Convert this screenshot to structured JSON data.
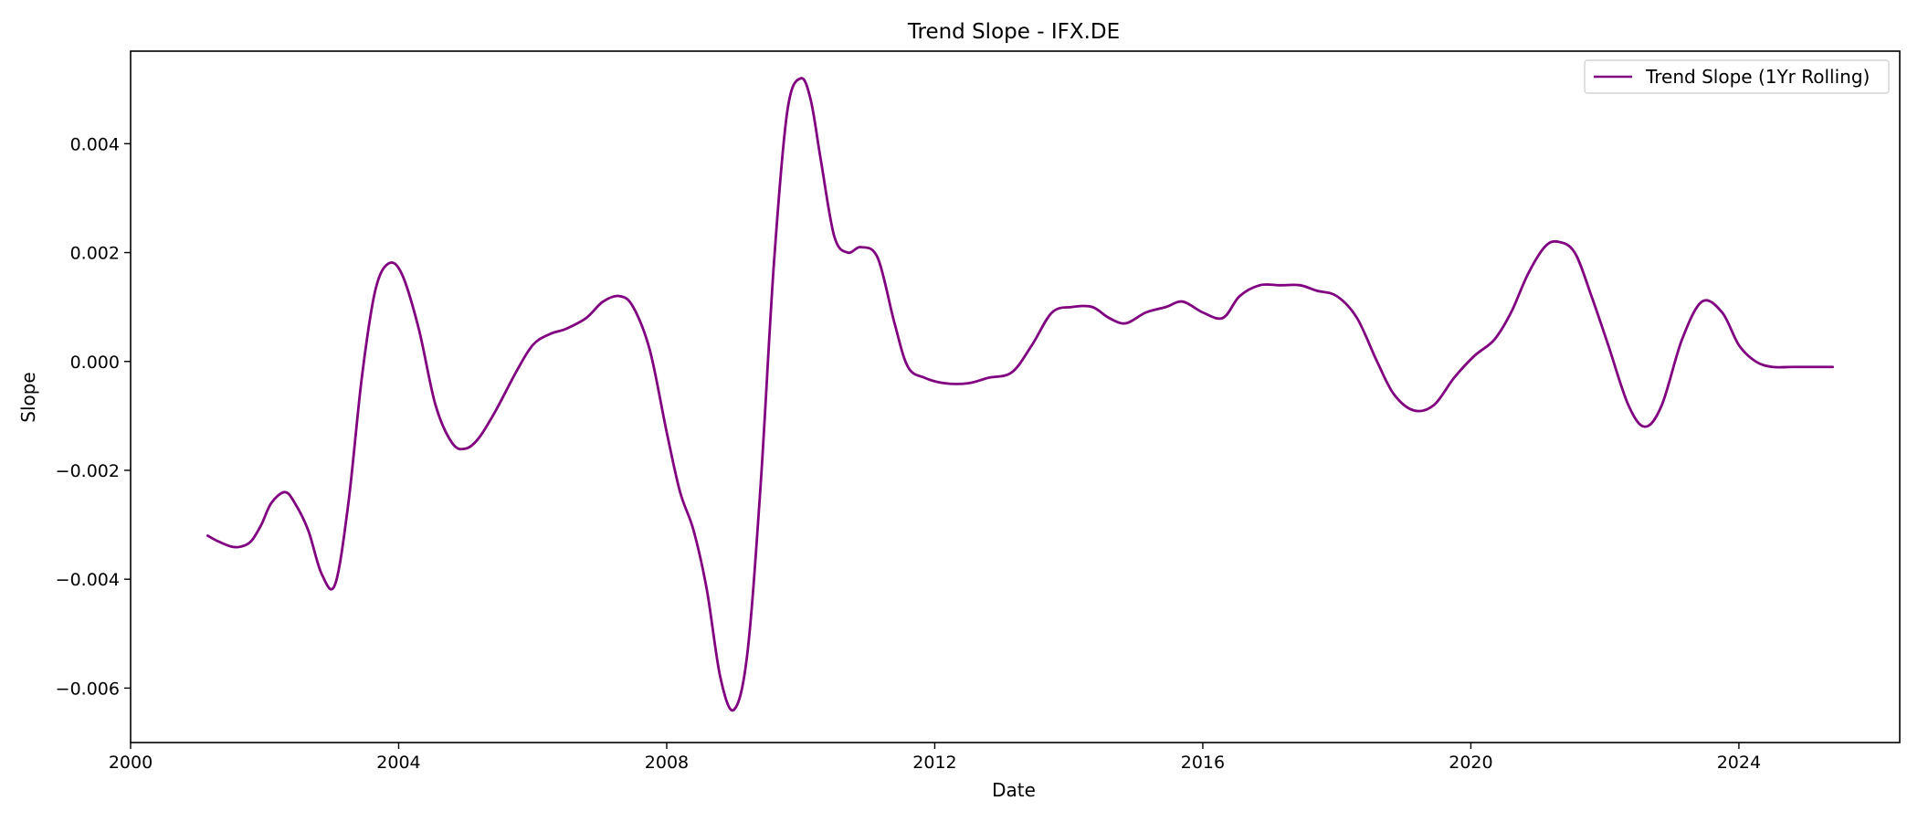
{
  "chart_data": {
    "type": "line",
    "title": "Trend Slope - IFX.DE",
    "xlabel": "Date",
    "ylabel": "Slope",
    "x_axis_type": "date_year",
    "xlim": [
      2000.0,
      2026.4
    ],
    "ylim": [
      -0.007,
      0.0057
    ],
    "x_ticks": [
      2000,
      2004,
      2008,
      2012,
      2016,
      2020,
      2024
    ],
    "y_ticks": [
      -0.006,
      -0.004,
      -0.002,
      0.0,
      0.002,
      0.004
    ],
    "y_tick_labels": [
      "−0.006",
      "−0.004",
      "−0.002",
      "0.000",
      "0.002",
      "0.004"
    ],
    "grid": false,
    "legend": {
      "position": "top-right",
      "entries": [
        "Trend Slope (1Yr Rolling)"
      ]
    },
    "series": [
      {
        "name": "Trend Slope (1Yr Rolling)",
        "color": "#800080",
        "x": [
          2001.15,
          2001.3,
          2001.5,
          2001.65,
          2001.8,
          2001.95,
          2002.1,
          2002.3,
          2002.45,
          2002.65,
          2002.85,
          2003.05,
          2003.25,
          2003.45,
          2003.65,
          2003.85,
          2004.05,
          2004.3,
          2004.55,
          2004.8,
          2005.0,
          2005.2,
          2005.45,
          2005.75,
          2006.0,
          2006.25,
          2006.5,
          2006.8,
          2007.05,
          2007.3,
          2007.5,
          2007.75,
          2008.0,
          2008.2,
          2008.4,
          2008.6,
          2008.8,
          2009.0,
          2009.2,
          2009.4,
          2009.6,
          2009.8,
          2010.0,
          2010.15,
          2010.3,
          2010.5,
          2010.7,
          2010.9,
          2011.15,
          2011.4,
          2011.6,
          2011.85,
          2012.15,
          2012.5,
          2012.8,
          2013.15,
          2013.45,
          2013.75,
          2014.05,
          2014.35,
          2014.6,
          2014.85,
          2015.15,
          2015.45,
          2015.7,
          2016.0,
          2016.3,
          2016.55,
          2016.85,
          2017.15,
          2017.45,
          2017.7,
          2018.0,
          2018.3,
          2018.6,
          2018.85,
          2019.15,
          2019.45,
          2019.75,
          2020.05,
          2020.35,
          2020.6,
          2020.85,
          2021.1,
          2021.3,
          2021.55,
          2021.8,
          2022.05,
          2022.35,
          2022.6,
          2022.85,
          2023.15,
          2023.45,
          2023.75,
          2024.0,
          2024.25,
          2024.5,
          2024.8,
          2025.05,
          2025.4
        ],
        "y": [
          -0.0032,
          -0.0033,
          -0.0034,
          -0.0034,
          -0.0033,
          -0.003,
          -0.0026,
          -0.0024,
          -0.0026,
          -0.0031,
          -0.0039,
          -0.0041,
          -0.0026,
          -0.0003,
          0.0013,
          0.0018,
          0.0016,
          0.0006,
          -0.0008,
          -0.0015,
          -0.0016,
          -0.0014,
          -0.0009,
          -0.0002,
          0.0003,
          0.0005,
          0.0006,
          0.0008,
          0.0011,
          0.0012,
          0.001,
          0.0002,
          -0.0013,
          -0.0024,
          -0.0031,
          -0.0042,
          -0.0058,
          -0.0064,
          -0.0054,
          -0.0023,
          0.0018,
          0.0046,
          0.0052,
          0.0048,
          0.0037,
          0.0023,
          0.002,
          0.0021,
          0.0019,
          0.0007,
          -0.0001,
          -0.0003,
          -0.0004,
          -0.0004,
          -0.0003,
          -0.0002,
          0.0003,
          0.0009,
          0.001,
          0.001,
          0.0008,
          0.0007,
          0.0009,
          0.001,
          0.0011,
          0.0009,
          0.0008,
          0.0012,
          0.0014,
          0.0014,
          0.0014,
          0.0013,
          0.0012,
          0.0008,
          0.0,
          -0.0006,
          -0.0009,
          -0.0008,
          -0.0003,
          0.0001,
          0.0004,
          0.0009,
          0.0016,
          0.0021,
          0.0022,
          0.002,
          0.0012,
          0.0003,
          -0.0008,
          -0.0012,
          -0.0008,
          0.0004,
          0.0011,
          0.0009,
          0.0003,
          0.0,
          -0.0001,
          -0.0001,
          -0.0001,
          -0.0001
        ]
      }
    ]
  }
}
